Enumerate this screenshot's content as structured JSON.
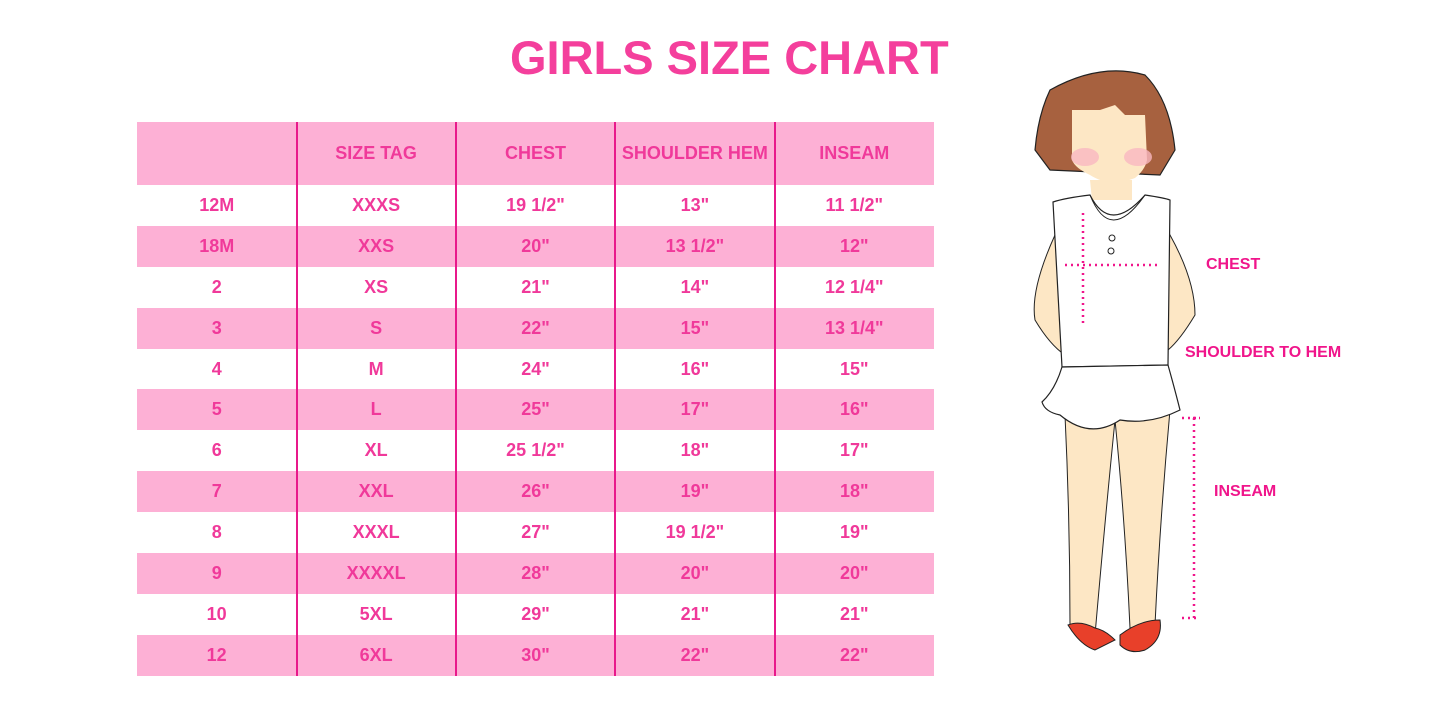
{
  "title": "GIRLS SIZE CHART",
  "table": {
    "headers": [
      "",
      "SIZE TAG",
      "CHEST",
      "SHOULDER HEM",
      "INSEAM"
    ],
    "rows": [
      [
        "12M",
        "XXXS",
        "19 1/2\"",
        "13\"",
        "11 1/2\""
      ],
      [
        "18M",
        "XXS",
        "20\"",
        "13 1/2\"",
        "12\""
      ],
      [
        "2",
        "XS",
        "21\"",
        "14\"",
        "12 1/4\""
      ],
      [
        "3",
        "S",
        "22\"",
        "15\"",
        "13 1/4\""
      ],
      [
        "4",
        "M",
        "24\"",
        "16\"",
        "15\""
      ],
      [
        "5",
        "L",
        "25\"",
        "17\"",
        "16\""
      ],
      [
        "6",
        "XL",
        "25 1/2\"",
        "18\"",
        "17\""
      ],
      [
        "7",
        "XXL",
        "26\"",
        "19\"",
        "18\""
      ],
      [
        "8",
        "XXXL",
        "27\"",
        "19 1/2\"",
        "19\""
      ],
      [
        "9",
        "XXXXL",
        "28\"",
        "20\"",
        "20\""
      ],
      [
        "10",
        "5XL",
        "29\"",
        "21\"",
        "21\""
      ],
      [
        "12",
        "6XL",
        "30\"",
        "22\"",
        "22\""
      ]
    ]
  },
  "figure": {
    "labels": {
      "chest": "CHEST",
      "shoulder_to_hem": "SHOULDER TO HEM",
      "inseam": "INSEAM"
    }
  },
  "colors": {
    "accent": "#f43f9c",
    "row_pink": "#fdb0d5",
    "divider": "#e8198b"
  }
}
